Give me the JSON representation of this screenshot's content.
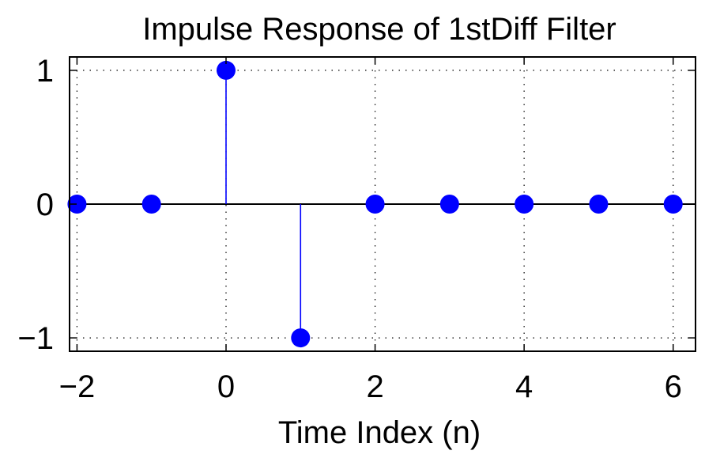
{
  "chart_data": {
    "type": "stem",
    "title": "Impulse Response of 1stDiff Filter",
    "xlabel": "Time Index (n)",
    "ylabel": "",
    "x": [
      -2,
      -1,
      0,
      1,
      2,
      3,
      4,
      5,
      6
    ],
    "y": [
      0,
      0,
      1,
      -1,
      0,
      0,
      0,
      0,
      0
    ],
    "xlim": [
      -2.1,
      6.3
    ],
    "ylim": [
      -1.1,
      1.1
    ],
    "xticks": [
      -2,
      0,
      2,
      4,
      6
    ],
    "xtick_labels": [
      "−2",
      "0",
      "2",
      "4",
      "6"
    ],
    "yticks": [
      -1,
      0,
      1
    ],
    "ytick_labels": [
      "−1",
      "0",
      "1"
    ],
    "grid": true,
    "colors": {
      "stem": "#0000ff",
      "marker": "#0000ff",
      "axes": "#000000"
    }
  }
}
